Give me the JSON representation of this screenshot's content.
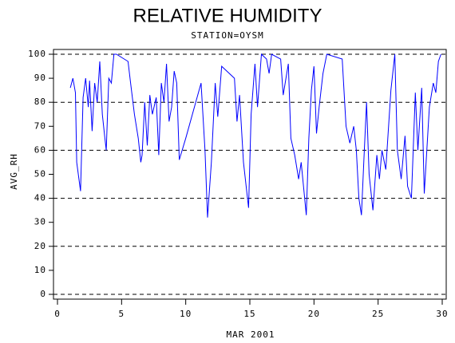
{
  "chart_data": {
    "type": "line",
    "title": "RELATIVE HUMIDITY",
    "subtitle": "STATION=OYSM",
    "x_label": "MAR 2001",
    "y_label": "AVG_RH",
    "xlim": [
      0,
      30
    ],
    "xticks": [
      0,
      5,
      10,
      15,
      20,
      25,
      30
    ],
    "ylim": [
      0,
      100
    ],
    "yticks": [
      0,
      10,
      20,
      30,
      40,
      50,
      60,
      70,
      80,
      90,
      100
    ],
    "gridlines": [
      0,
      20,
      40,
      60,
      80,
      100
    ],
    "series": [
      {
        "color": "#0000ff",
        "x": [
          1.0,
          1.2,
          1.4,
          1.5,
          1.7,
          1.8,
          2.0,
          2.2,
          2.4,
          2.5,
          2.7,
          2.9,
          3.1,
          3.3,
          3.5,
          3.7,
          3.8,
          4.0,
          4.2,
          4.4,
          4.6,
          5.5,
          5.7,
          6.0,
          6.3,
          6.5,
          6.6,
          6.8,
          7.0,
          7.2,
          7.4,
          7.7,
          7.9,
          8.1,
          8.3,
          8.5,
          8.7,
          8.9,
          9.1,
          9.3,
          9.5,
          10.0,
          11.2,
          11.5,
          11.7,
          12.0,
          12.3,
          12.5,
          12.8,
          13.8,
          14.0,
          14.2,
          14.5,
          14.9,
          15.1,
          15.4,
          15.6,
          15.9,
          16.3,
          16.5,
          16.7,
          17.4,
          17.6,
          18.0,
          18.2,
          18.5,
          18.8,
          19.0,
          19.2,
          19.4,
          19.6,
          19.8,
          20.0,
          20.2,
          20.4,
          20.7,
          21.0,
          22.2,
          22.5,
          22.8,
          23.1,
          23.3,
          23.5,
          23.7,
          23.9,
          24.1,
          24.3,
          24.6,
          24.9,
          25.1,
          25.3,
          25.6,
          26.0,
          26.3,
          26.5,
          26.8,
          27.1,
          27.3,
          27.6,
          27.9,
          28.1,
          28.4,
          28.6,
          29.0,
          29.3,
          29.5,
          29.7,
          29.9
        ],
        "values": [
          86,
          90,
          84,
          55,
          47,
          43,
          82,
          90,
          78,
          89,
          68,
          88,
          80,
          97,
          75,
          65,
          60,
          90,
          88,
          100,
          100,
          97,
          88,
          75,
          65,
          55,
          58,
          80,
          62,
          83,
          75,
          82,
          58,
          88,
          80,
          96,
          72,
          78,
          93,
          88,
          56,
          65,
          88,
          60,
          32,
          55,
          88,
          74,
          95,
          90,
          72,
          83,
          55,
          36,
          75,
          96,
          78,
          100,
          98,
          92,
          100,
          98,
          83,
          96,
          65,
          58,
          48,
          55,
          44,
          33,
          65,
          85,
          95,
          67,
          78,
          92,
          100,
          98,
          70,
          63,
          70,
          60,
          40,
          33,
          57,
          80,
          50,
          35,
          58,
          48,
          60,
          52,
          85,
          100,
          60,
          48,
          66,
          45,
          40,
          84,
          60,
          86,
          42,
          78,
          88,
          84,
          97,
          100
        ]
      }
    ]
  }
}
